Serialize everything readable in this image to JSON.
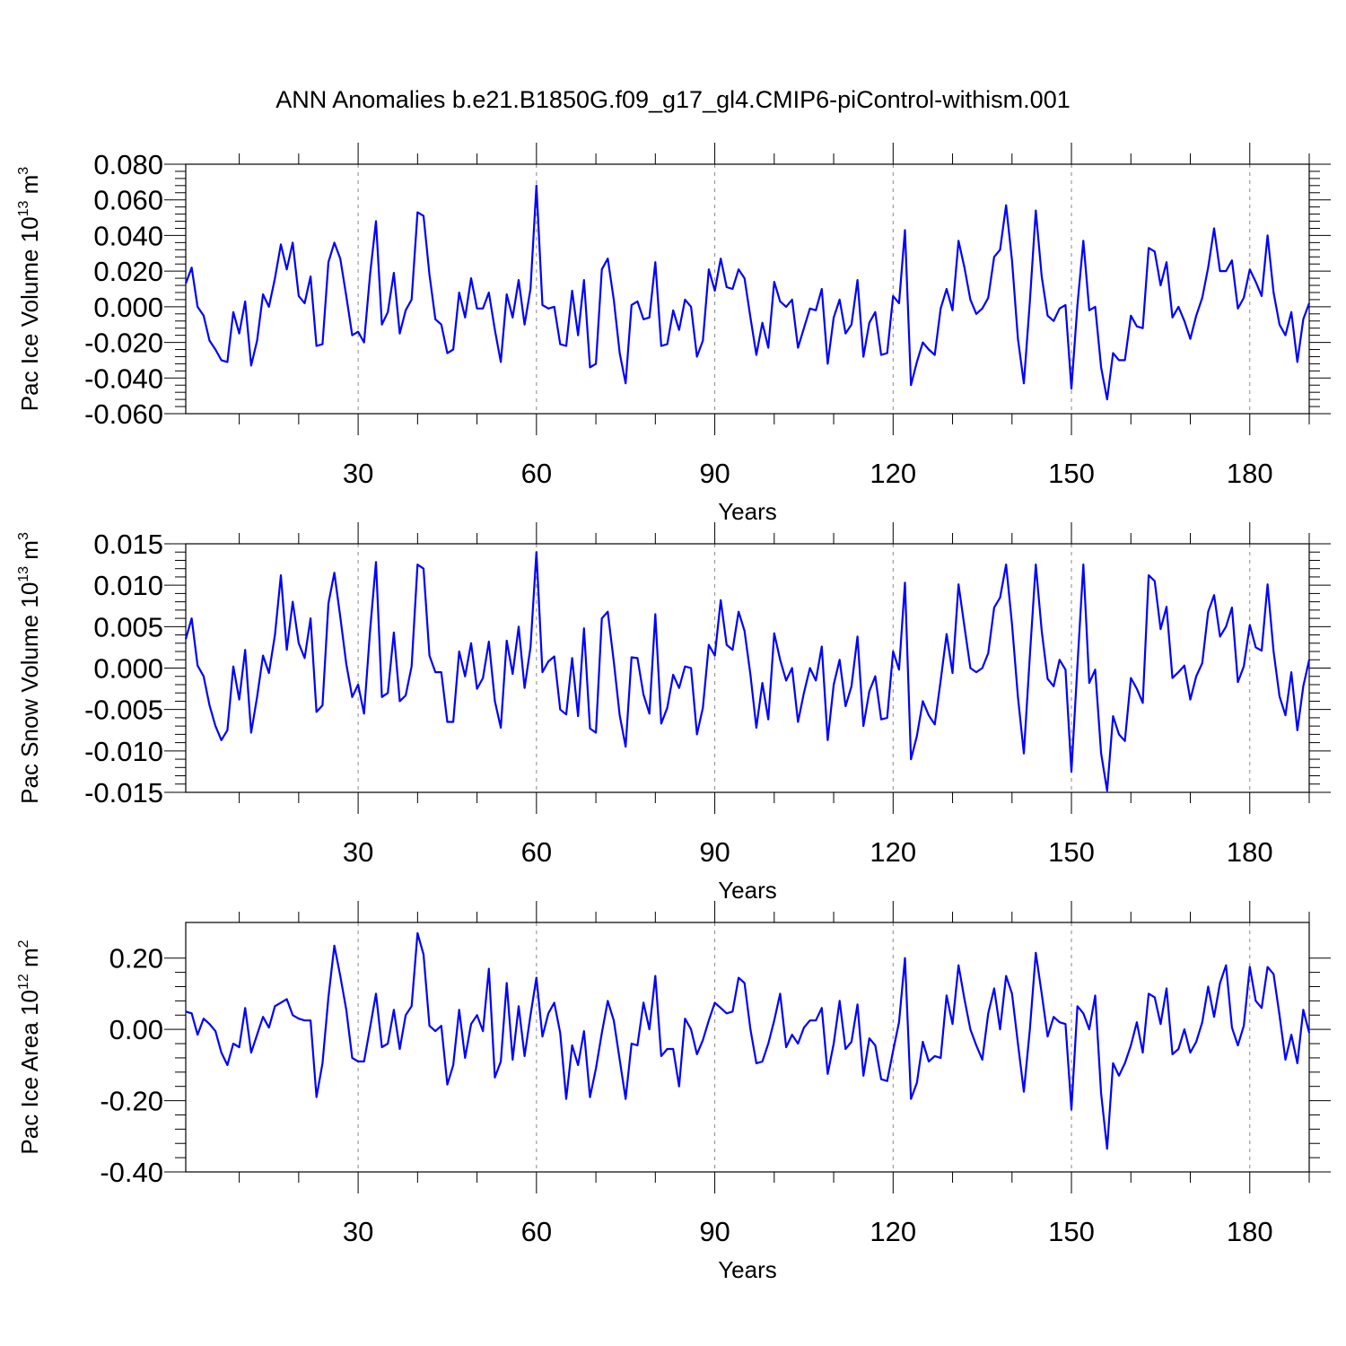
{
  "title": "ANN Anomalies b.e21.B1850G.f09_g17_gl4.CMIP6-piControl-withism.001",
  "line_color": "#0000ff",
  "chart_data": [
    {
      "type": "line",
      "ylabel": "Pac Ice Volume 10",
      "ylabel_sup": "13",
      "ylabel_unit": " m",
      "ylabel_unit_sup": "3",
      "xlabel": "Years",
      "xlim": [
        1,
        190
      ],
      "ylim": [
        -0.06,
        0.08
      ],
      "xticks": [
        30,
        60,
        90,
        120,
        150,
        180
      ],
      "xtick_labels": [
        "30",
        "60",
        "90",
        "120",
        "150",
        "180"
      ],
      "yticks": [
        -0.06,
        -0.04,
        -0.02,
        0.0,
        0.02,
        0.04,
        0.06,
        0.08
      ],
      "ytick_labels": [
        "-0.060",
        "-0.040",
        "-0.020",
        "0.000",
        "0.020",
        "0.040",
        "0.060",
        "0.080"
      ],
      "values": [
        0.013,
        0.022,
        0.0,
        -0.005,
        -0.019,
        -0.024,
        -0.03,
        -0.031,
        -0.003,
        -0.015,
        0.003,
        -0.033,
        -0.019,
        0.007,
        0.0,
        0.016,
        0.035,
        0.021,
        0.036,
        0.006,
        0.002,
        0.017,
        -0.022,
        -0.021,
        0.025,
        0.036,
        0.027,
        0.006,
        -0.016,
        -0.014,
        -0.02,
        0.018,
        0.048,
        -0.01,
        -0.003,
        0.019,
        -0.015,
        -0.002,
        0.004,
        0.053,
        0.051,
        0.018,
        -0.007,
        -0.01,
        -0.026,
        -0.024,
        0.008,
        -0.006,
        0.016,
        -0.001,
        -0.001,
        0.008,
        -0.013,
        -0.031,
        0.007,
        -0.006,
        0.015,
        -0.01,
        0.01,
        0.068,
        0.001,
        -0.001,
        0.0,
        -0.021,
        -0.022,
        0.009,
        -0.016,
        0.015,
        -0.034,
        -0.032,
        0.021,
        0.027,
        0.004,
        -0.026,
        -0.043,
        0.001,
        0.003,
        -0.007,
        -0.006,
        0.025,
        -0.022,
        -0.021,
        -0.002,
        -0.013,
        0.004,
        0.0,
        -0.028,
        -0.019,
        0.021,
        0.009,
        0.027,
        0.011,
        0.01,
        0.021,
        0.016,
        -0.006,
        -0.027,
        -0.009,
        -0.023,
        0.014,
        0.003,
        0.0,
        0.004,
        -0.023,
        -0.012,
        -0.001,
        -0.002,
        0.01,
        -0.032,
        -0.006,
        0.004,
        -0.015,
        -0.01,
        0.015,
        -0.028,
        -0.009,
        -0.003,
        -0.027,
        -0.026,
        0.006,
        0.002,
        0.043,
        -0.044,
        -0.031,
        -0.02,
        -0.024,
        -0.027,
        -0.001,
        0.01,
        -0.002,
        0.037,
        0.022,
        0.004,
        -0.004,
        -0.001,
        0.005,
        0.028,
        0.032,
        0.057,
        0.026,
        -0.018,
        -0.043,
        0.003,
        0.054,
        0.017,
        -0.005,
        -0.008,
        -0.001,
        0.001,
        -0.046,
        0.001,
        0.037,
        -0.002,
        0.0,
        -0.034,
        -0.052,
        -0.026,
        -0.03,
        -0.03,
        -0.005,
        -0.011,
        -0.012,
        0.033,
        0.031,
        0.012,
        0.025,
        -0.006,
        0.0,
        -0.008,
        -0.018,
        -0.005,
        0.005,
        0.022,
        0.044,
        0.02,
        0.02,
        0.026,
        -0.001,
        0.005,
        0.021,
        0.014,
        0.006,
        0.04,
        0.008,
        -0.01,
        -0.016,
        -0.003,
        -0.031,
        -0.007,
        0.002
      ]
    },
    {
      "type": "line",
      "ylabel": "Pac Snow Volume 10",
      "ylabel_sup": "13",
      "ylabel_unit": " m",
      "ylabel_unit_sup": "3",
      "xlabel": "Years",
      "xlim": [
        1,
        190
      ],
      "ylim": [
        -0.015,
        0.015
      ],
      "xticks": [
        30,
        60,
        90,
        120,
        150,
        180
      ],
      "xtick_labels": [
        "30",
        "60",
        "90",
        "120",
        "150",
        "180"
      ],
      "yticks": [
        -0.015,
        -0.01,
        -0.005,
        0.0,
        0.005,
        0.01,
        0.015
      ],
      "ytick_labels": [
        "-0.015",
        "-0.010",
        "-0.005",
        "0.000",
        "0.005",
        "0.010",
        "0.015"
      ],
      "values": [
        0.0035,
        0.006,
        0.0003,
        -0.001,
        -0.0045,
        -0.007,
        -0.0087,
        -0.0075,
        0.0002,
        -0.0038,
        0.0022,
        -0.0078,
        -0.0035,
        0.0015,
        -0.0006,
        0.004,
        0.0112,
        0.0022,
        0.008,
        0.003,
        0.0012,
        0.006,
        -0.0053,
        -0.0045,
        0.0078,
        0.0115,
        0.0062,
        0.0005,
        -0.0035,
        -0.002,
        -0.0055,
        0.0045,
        0.0128,
        -0.0035,
        -0.003,
        0.0043,
        -0.004,
        -0.0033,
        0.0002,
        0.0125,
        0.012,
        0.0015,
        -0.0005,
        -0.0005,
        -0.0065,
        -0.0065,
        0.002,
        -0.001,
        0.003,
        -0.0025,
        -0.0012,
        0.0032,
        -0.004,
        -0.0072,
        0.0033,
        -0.0007,
        0.005,
        -0.0024,
        0.0025,
        0.014,
        -0.0005,
        0.0008,
        0.0014,
        -0.005,
        -0.0056,
        0.0012,
        -0.0058,
        0.0048,
        -0.0073,
        -0.0078,
        0.006,
        0.0068,
        0.0008,
        -0.0057,
        -0.0095,
        0.0013,
        0.0012,
        -0.0032,
        -0.0055,
        0.0065,
        -0.0067,
        -0.0048,
        -0.0008,
        -0.0024,
        0.0002,
        0.0,
        -0.008,
        -0.0048,
        0.0028,
        0.0015,
        0.0082,
        0.0028,
        0.0022,
        0.0068,
        0.0045,
        -0.0008,
        -0.0072,
        -0.0018,
        -0.0062,
        0.0042,
        0.001,
        -0.0015,
        0.0,
        -0.0065,
        -0.003,
        0.0,
        -0.0015,
        0.0026,
        -0.0087,
        -0.002,
        0.001,
        -0.0046,
        -0.0022,
        0.0038,
        -0.007,
        -0.0028,
        -0.001,
        -0.0062,
        -0.006,
        0.002,
        -0.0002,
        0.0103,
        -0.011,
        -0.0082,
        -0.004,
        -0.0057,
        -0.0068,
        -0.0015,
        0.0041,
        -0.0006,
        0.0101,
        0.005,
        0.0,
        -0.0005,
        0.0,
        0.0018,
        0.0073,
        0.0085,
        0.0125,
        0.0053,
        -0.0035,
        -0.0103,
        0.0015,
        0.0125,
        0.0045,
        -0.0013,
        -0.0022,
        0.001,
        -0.0002,
        -0.0125,
        0.0003,
        0.0125,
        -0.0018,
        -0.0002,
        -0.0103,
        -0.0148,
        -0.0058,
        -0.008,
        -0.0088,
        -0.0012,
        -0.0025,
        -0.0042,
        0.0112,
        0.0105,
        0.0047,
        0.0074,
        -0.0012,
        -0.0005,
        0.0003,
        -0.0038,
        -0.001,
        0.0006,
        0.0068,
        0.0088,
        0.0038,
        0.005,
        0.0073,
        -0.0017,
        0.0002,
        0.0052,
        0.0025,
        0.0021,
        0.0101,
        0.002,
        -0.0034,
        -0.0057,
        -0.0005,
        -0.0075,
        -0.0022,
        0.001
      ]
    },
    {
      "type": "line",
      "ylabel": "Pac Ice Area 10",
      "ylabel_sup": "12",
      "ylabel_unit": " m",
      "ylabel_unit_sup": "2",
      "xlabel": "Years",
      "xlim": [
        1,
        190
      ],
      "ylim": [
        -0.4,
        0.3
      ],
      "xticks": [
        30,
        60,
        90,
        120,
        150,
        180
      ],
      "xtick_labels": [
        "30",
        "60",
        "90",
        "120",
        "150",
        "180"
      ],
      "yticks": [
        -0.4,
        -0.2,
        0.0,
        0.2
      ],
      "ytick_labels": [
        "-0.40",
        "-0.20",
        "0.00",
        "0.20"
      ],
      "values": [
        0.05,
        0.045,
        -0.015,
        0.03,
        0.015,
        -0.005,
        -0.065,
        -0.1,
        -0.04,
        -0.05,
        0.06,
        -0.065,
        -0.015,
        0.035,
        0.005,
        0.065,
        0.075,
        0.085,
        0.04,
        0.03,
        0.025,
        0.025,
        -0.19,
        -0.095,
        0.09,
        0.235,
        0.15,
        0.055,
        -0.08,
        -0.09,
        -0.09,
        0.005,
        0.1,
        -0.05,
        -0.04,
        0.055,
        -0.055,
        0.04,
        0.065,
        0.27,
        0.21,
        0.01,
        -0.005,
        0.01,
        -0.155,
        -0.1,
        0.055,
        -0.08,
        0.015,
        0.04,
        -0.005,
        0.17,
        -0.135,
        -0.09,
        0.13,
        -0.085,
        0.065,
        -0.075,
        0.04,
        0.145,
        -0.02,
        0.045,
        0.075,
        -0.01,
        -0.195,
        -0.045,
        -0.1,
        -0.005,
        -0.19,
        -0.11,
        -0.01,
        0.08,
        0.025,
        -0.085,
        -0.195,
        -0.04,
        -0.045,
        0.075,
        0.0,
        0.15,
        -0.075,
        -0.055,
        -0.055,
        -0.16,
        0.03,
        0.0,
        -0.07,
        -0.03,
        0.025,
        0.075,
        0.06,
        0.045,
        0.05,
        0.145,
        0.13,
        0.0,
        -0.095,
        -0.09,
        -0.04,
        0.025,
        0.1,
        -0.05,
        -0.015,
        -0.04,
        0.005,
        0.025,
        0.025,
        0.06,
        -0.125,
        -0.04,
        0.08,
        -0.055,
        -0.035,
        0.07,
        -0.13,
        -0.025,
        -0.045,
        -0.14,
        -0.145,
        -0.06,
        0.02,
        0.2,
        -0.195,
        -0.15,
        -0.035,
        -0.09,
        -0.075,
        -0.08,
        0.095,
        0.015,
        0.18,
        0.085,
        0.0,
        -0.045,
        -0.085,
        0.045,
        0.115,
        0.0,
        0.15,
        0.1,
        -0.04,
        -0.175,
        0.0,
        0.215,
        0.1,
        -0.02,
        0.035,
        0.02,
        0.015,
        -0.225,
        0.065,
        0.045,
        0.0,
        0.095,
        -0.18,
        -0.335,
        -0.095,
        -0.13,
        -0.095,
        -0.045,
        0.02,
        -0.065,
        0.1,
        0.09,
        0.015,
        0.115,
        -0.07,
        -0.055,
        0.0,
        -0.065,
        -0.035,
        0.02,
        0.12,
        0.035,
        0.13,
        0.18,
        0.005,
        -0.045,
        0.01,
        0.175,
        0.08,
        0.06,
        0.175,
        0.155,
        0.04,
        -0.085,
        -0.015,
        -0.095,
        0.055,
        -0.01
      ]
    }
  ]
}
